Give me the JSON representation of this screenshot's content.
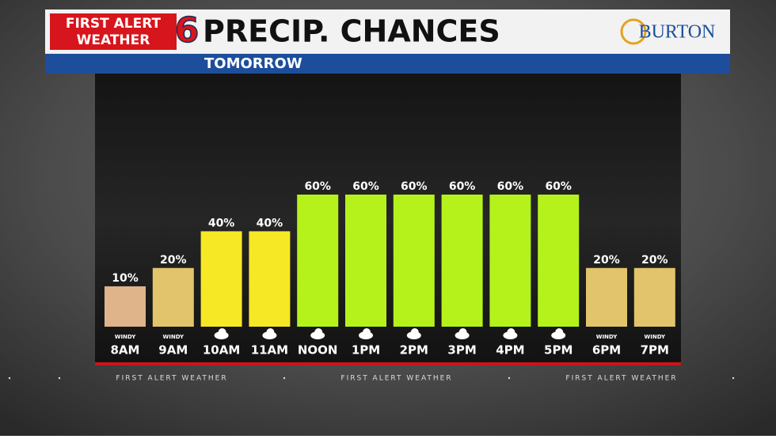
{
  "chart_data": {
    "type": "bar",
    "title": "PRECIP. CHANCES",
    "subtitle": "TOMORROW",
    "logo": {
      "line1": "FIRST ALERT",
      "line2": "WEATHER",
      "channel": "6"
    },
    "sponsor": "BURTON",
    "ticker": "FIRST ALERT WEATHER",
    "categories": [
      "8AM",
      "9AM",
      "10AM",
      "11AM",
      "NOON",
      "1PM",
      "2PM",
      "3PM",
      "4PM",
      "5PM",
      "6PM",
      "7PM"
    ],
    "values": [
      10,
      20,
      40,
      40,
      60,
      60,
      60,
      60,
      60,
      60,
      20,
      20
    ],
    "value_labels": [
      "10%",
      "20%",
      "40%",
      "40%",
      "60%",
      "60%",
      "60%",
      "60%",
      "60%",
      "60%",
      "20%",
      "20%"
    ],
    "colors": [
      "#dfb48a",
      "#e2c46c",
      "#f6e824",
      "#f6e824",
      "#b5f21c",
      "#b5f21c",
      "#b5f21c",
      "#b5f21c",
      "#b5f21c",
      "#b5f21c",
      "#e2c46c",
      "#e2c46c"
    ],
    "icon_labels": [
      "WINDY",
      "WINDY",
      null,
      null,
      null,
      null,
      null,
      null,
      null,
      null,
      "WINDY",
      "WINDY"
    ],
    "ylim": [
      -12,
      60
    ]
  }
}
